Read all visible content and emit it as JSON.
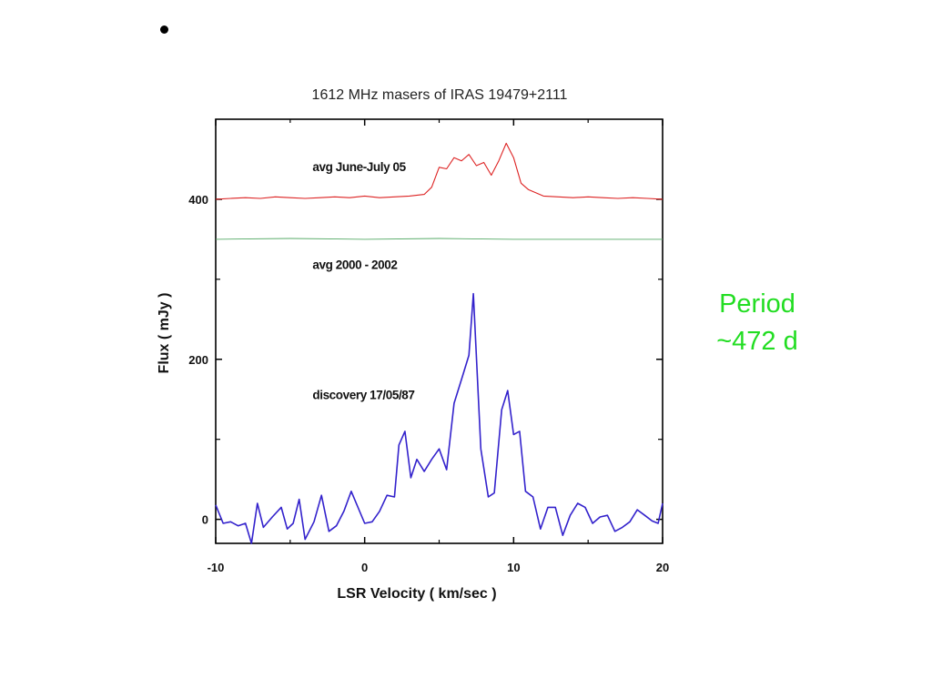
{
  "slide": {
    "bullet": "•",
    "note_lines": [
      "Period",
      "~472 d"
    ],
    "note_color": "#22dd22"
  },
  "chart_data": {
    "type": "line",
    "title": "1612 MHz masers of IRAS 19479+2111",
    "xlabel": "LSR  Velocity ( km/sec )",
    "ylabel": "Flux  ( mJy )",
    "xlim": [
      -10,
      20
    ],
    "ylim": [
      -30,
      500
    ],
    "x_ticks": [
      -10,
      0,
      10,
      20
    ],
    "x_tick_labels": [
      "-10",
      "0",
      "10",
      "20"
    ],
    "y_ticks": [
      0,
      200,
      400
    ],
    "y_tick_labels": [
      "0",
      "200",
      "400"
    ],
    "grid": false,
    "annotations": [
      {
        "text": "avg June-July 05",
        "x": -3.5,
        "y": 435
      },
      {
        "text": "avg  2000 - 2002",
        "x": -3.5,
        "y": 313
      },
      {
        "text": "discovery 17/05/87",
        "x": -3.5,
        "y": 150
      }
    ],
    "series": [
      {
        "color": "#dd2222",
        "x": [
          -10,
          -9,
          -8,
          -7,
          -6,
          -5,
          -4,
          -3,
          -2,
          -1,
          0,
          1,
          2,
          3,
          4,
          4.5,
          5,
          5.5,
          6,
          6.5,
          7,
          7.5,
          8,
          8.5,
          9,
          9.5,
          10,
          10.5,
          11,
          12,
          13,
          14,
          15,
          16,
          17,
          18,
          19,
          20
        ],
        "values": [
          400,
          401,
          402,
          401,
          403,
          402,
          401,
          402,
          403,
          402,
          404,
          402,
          403,
          404,
          406,
          415,
          440,
          438,
          452,
          448,
          456,
          442,
          446,
          430,
          448,
          470,
          452,
          420,
          412,
          404,
          403,
          402,
          403,
          402,
          401,
          402,
          401,
          400
        ]
      },
      {
        "color": "#55aa66",
        "x": [
          -10,
          -5,
          0,
          5,
          10,
          15,
          20
        ],
        "values": [
          350,
          351,
          350,
          351,
          350,
          350,
          350
        ]
      },
      {
        "color": "#3322cc",
        "x": [
          -10,
          -9.5,
          -9,
          -8.5,
          -8,
          -7.6,
          -7.2,
          -6.8,
          -6.2,
          -5.6,
          -5.2,
          -4.8,
          -4.4,
          -4,
          -3.4,
          -2.9,
          -2.4,
          -1.9,
          -1.4,
          -0.9,
          0,
          0.5,
          1,
          1.5,
          2,
          2.3,
          2.7,
          3.1,
          3.5,
          4,
          4.5,
          5,
          5.5,
          6,
          6.5,
          7,
          7.3,
          7.8,
          8.3,
          8.7,
          9.2,
          9.6,
          10,
          10.4,
          10.8,
          11.3,
          11.8,
          12.3,
          12.8,
          13.3,
          13.8,
          14.3,
          14.8,
          15.3,
          15.8,
          16.3,
          16.8,
          17.3,
          17.8,
          18.3,
          18.8,
          19.3,
          19.7,
          20
        ],
        "values": [
          18,
          -5,
          -3,
          -8,
          -5,
          -30,
          20,
          -10,
          3,
          15,
          -12,
          -5,
          25,
          -25,
          -3,
          30,
          -15,
          -8,
          10,
          35,
          -5,
          -3,
          10,
          30,
          28,
          93,
          110,
          52,
          75,
          60,
          75,
          88,
          62,
          145,
          175,
          205,
          282,
          88,
          28,
          33,
          137,
          161,
          106,
          110,
          35,
          28,
          -12,
          15,
          15,
          -20,
          5,
          20,
          15,
          -5,
          3,
          5,
          -15,
          -10,
          -3,
          12,
          5,
          -2,
          -5,
          20
        ]
      }
    ]
  }
}
